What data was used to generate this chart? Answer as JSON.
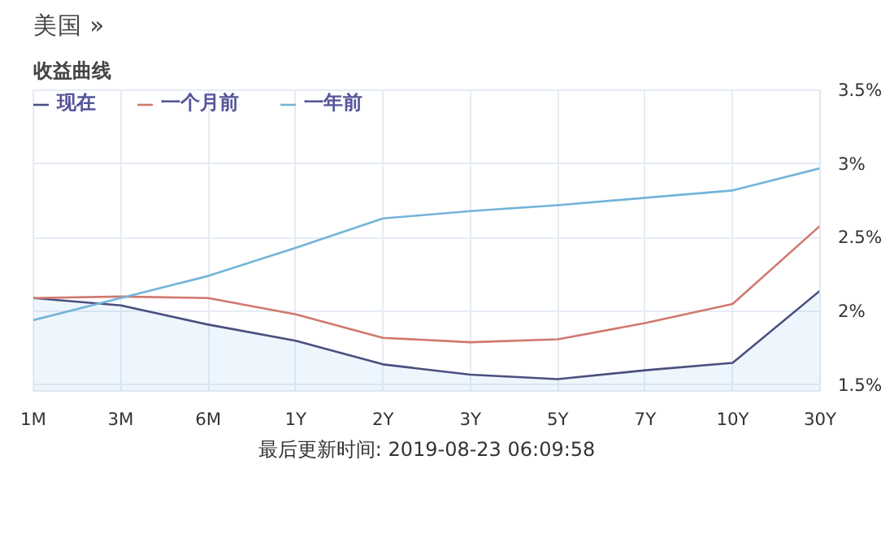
{
  "chart_data": {
    "type": "line",
    "title": "美国 »",
    "subtitle": "收益曲线",
    "categories": [
      "1M",
      "3M",
      "6M",
      "1Y",
      "2Y",
      "3Y",
      "5Y",
      "7Y",
      "10Y",
      "30Y"
    ],
    "series": [
      {
        "name": "现在",
        "color": "#4b4f7f",
        "type": "area",
        "values": [
          2.09,
          2.04,
          1.91,
          1.8,
          1.64,
          1.57,
          1.54,
          1.6,
          1.65,
          2.14
        ]
      },
      {
        "name": "一个月前",
        "color": "#d0786e",
        "values": [
          2.09,
          2.1,
          2.09,
          1.98,
          1.82,
          1.79,
          1.81,
          1.92,
          2.05,
          2.58
        ]
      },
      {
        "name": "一年前",
        "color": "#73b4d8",
        "values": [
          1.94,
          2.09,
          2.24,
          2.43,
          2.63,
          2.68,
          2.72,
          2.77,
          2.82,
          2.97
        ]
      }
    ],
    "ylim": [
      1.46,
      3.5
    ],
    "yticks": [
      {
        "value": 1.5,
        "label": "1.5%"
      },
      {
        "value": 2,
        "label": "2%"
      },
      {
        "value": 2.5,
        "label": "2.5%"
      },
      {
        "value": 3,
        "label": "3%"
      },
      {
        "value": 3.5,
        "label": "3.5%"
      }
    ],
    "grid": true,
    "legend": "top left",
    "annotations": [
      "最后更新时间: 2019-08-23 06:09:58"
    ]
  }
}
